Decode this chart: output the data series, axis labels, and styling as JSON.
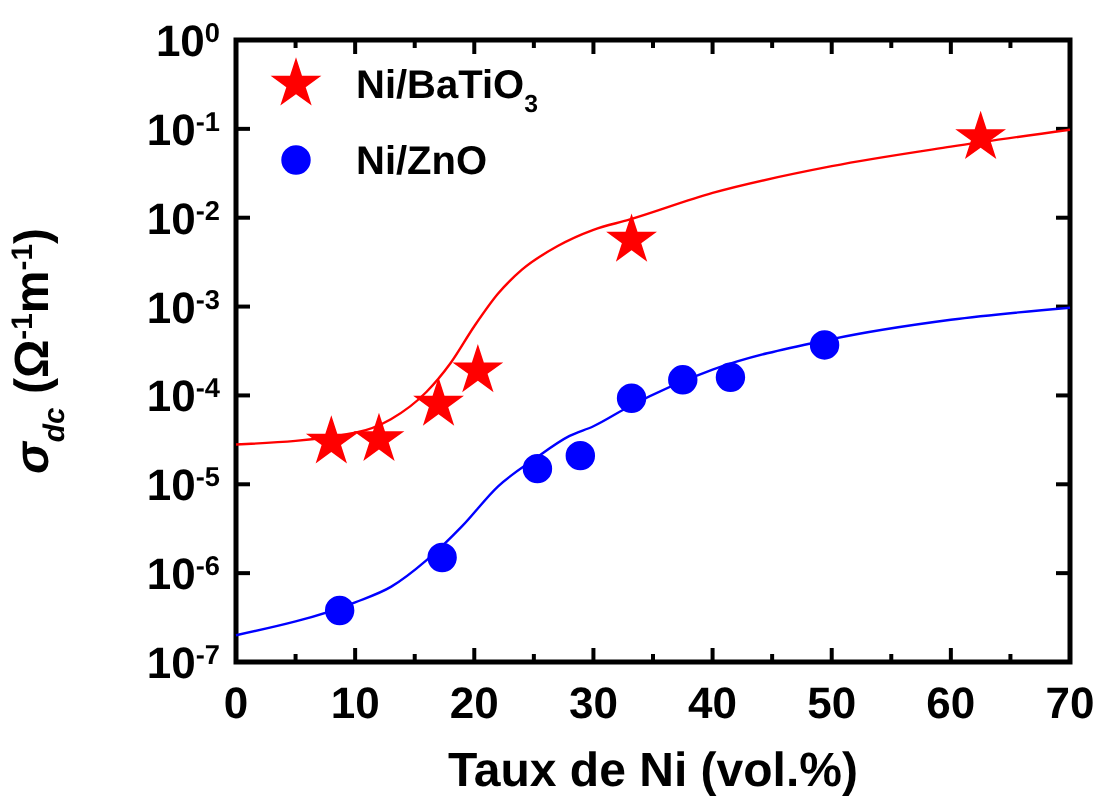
{
  "chart_data": {
    "type": "scatter",
    "xlabel": "Taux de Ni (vol.%)",
    "ylabel": "σ$_{dc}$ (Ω$^{-1}$m$^{-1}$)",
    "log": "y",
    "xlim": [
      0,
      70
    ],
    "xticks": [
      0,
      {
        "value": 5,
        "label": null
      },
      10,
      {
        "value": 15,
        "label": null
      },
      20,
      {
        "value": 25,
        "label": null
      },
      30,
      {
        "value": 35,
        "label": null
      },
      40,
      {
        "value": 45,
        "label": null
      },
      50,
      {
        "value": 55,
        "label": null
      },
      60,
      {
        "value": 65,
        "label": null
      },
      70
    ],
    "ylim": [
      1e-07,
      1
    ],
    "yticks": [
      {
        "value": 1e-07,
        "label": "10$^{-7}$"
      },
      {
        "value": 1e-06,
        "label": "10$^{-6}$"
      },
      {
        "value": 1e-05,
        "label": "10$^{-5}$"
      },
      {
        "value": 0.0001,
        "label": "10$^{-4}$"
      },
      {
        "value": 0.001,
        "label": "10$^{-3}$"
      },
      {
        "value": 0.01,
        "label": "10$^{-2}$"
      },
      {
        "value": 0.1,
        "label": "10$^{-1}$"
      },
      {
        "value": 1,
        "label": "10$^{0}$"
      }
    ],
    "grid": false,
    "legend": "top left",
    "series": [
      {
        "type": "line",
        "color": "#ff0000",
        "marker": "none",
        "line_style": "solid",
        "x": [
          0,
          10,
          13,
          16,
          18,
          20,
          22,
          24,
          27,
          30,
          33,
          40,
          50,
          60,
          70
        ],
        "values": [
          2.8e-05,
          3.8e-05,
          5.4e-05,
          0.00011,
          0.00023,
          0.0006,
          0.0014,
          0.0026,
          0.0048,
          0.0073,
          0.0095,
          0.019,
          0.038,
          0.063,
          0.098
        ]
      },
      {
        "type": "line",
        "color": "#0000ff",
        "marker": "none",
        "line_style": "solid",
        "x": [
          0,
          10,
          13,
          16,
          19,
          22,
          25,
          28,
          30,
          33,
          40,
          50,
          60,
          70
        ],
        "values": [
          2e-07,
          4.7e-07,
          7e-07,
          1.4e-06,
          3.4e-06,
          9.5e-06,
          1.9e-05,
          3.5e-05,
          4.5e-05,
          7.5e-05,
          0.000195,
          0.00043,
          0.00071,
          0.00097
        ]
      },
      {
        "name": "Ni/BaTiO$_{3}$",
        "color": "#ff0000",
        "marker": "star",
        "x": [
          8,
          12,
          17,
          20.3,
          33.2,
          62.5
        ],
        "values": [
          3e-05,
          3.2e-05,
          8e-05,
          0.00019,
          0.0056,
          0.08
        ]
      },
      {
        "name": "Ni/ZnO",
        "color": "#0000ff",
        "marker": "circle",
        "x": [
          8.7,
          17.3,
          25.3,
          28.9,
          33.2,
          37.5,
          41.5,
          49.4
        ],
        "values": [
          3.8e-07,
          1.5e-06,
          1.5e-05,
          2.1e-05,
          9.3e-05,
          0.00015,
          0.00016,
          0.00037
        ]
      }
    ]
  }
}
